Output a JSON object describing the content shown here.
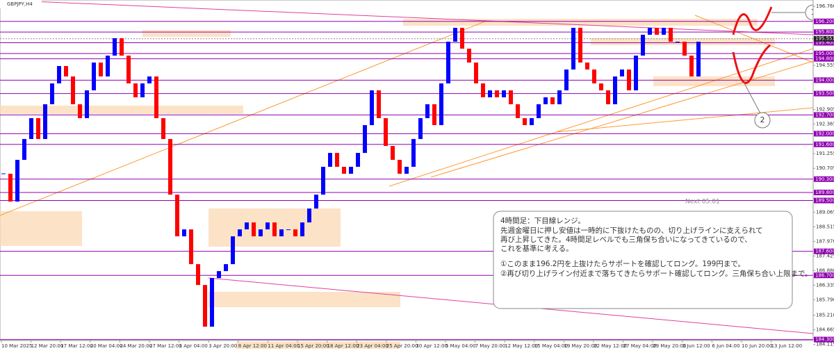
{
  "chart_data": {
    "type": "candlestick",
    "title": "GBPJPY,H4",
    "timer": "Next 05:01",
    "ylim": [
      183.9,
      197.0
    ],
    "up_color": "#0000ff",
    "down_color": "#ff0000",
    "level_color": "#9000b0",
    "current_price": {
      "value": 195.551,
      "label": "195.551"
    },
    "categories": [
      "10 Mar 2025",
      "12 Mar 20:00",
      "17 Mar 12:00",
      "20 Mar 04:00",
      "24 Mar 20:00",
      "27 Mar 12:00",
      "1 Apr 04:00",
      "3 Apr 20:00",
      "8 Apr 12:00",
      "11 Apr 04:00",
      "15 Apr 20:00",
      "18 Apr 12:00",
      "23 Apr 04:00",
      "25 Apr 20:00",
      "30 Apr 12:00",
      "5 May 04:00",
      "7 May 20:00",
      "12 May 12:00",
      "15 May 04:00",
      "19 May 20:00",
      "22 May 12:00",
      "27 May 04:00",
      "29 May 20:00",
      "3 Jun 12:00",
      "6 Jun 04:00",
      "10 Jun 20:00",
      "13 Jun 12:00"
    ],
    "closes": [
      190.5,
      189.46,
      191.02,
      191.8,
      192.58,
      191.8,
      193.1,
      193.88,
      194.53,
      194.14,
      193.1,
      192.58,
      193.62,
      194.66,
      194.14,
      194.92,
      195.57,
      194.92,
      193.88,
      193.36,
      193.88,
      194.14,
      192.58,
      191.8,
      189.72,
      188.16,
      188.42,
      187.12,
      186.34,
      184.78,
      186.6,
      186.86,
      187.12,
      188.16,
      188.42,
      188.68,
      188.16,
      188.42,
      188.68,
      188.16,
      188.42,
      188.42,
      188.16,
      188.68,
      189.2,
      189.72,
      190.76,
      191.28,
      190.76,
      190.5,
      190.76,
      191.28,
      192.32,
      193.62,
      192.58,
      191.54,
      191.02,
      190.5,
      190.76,
      191.8,
      192.58,
      193.1,
      192.32,
      193.88,
      195.44,
      195.96,
      195.18,
      194.66,
      193.88,
      193.36,
      193.62,
      193.36,
      193.62,
      193.1,
      192.58,
      192.32,
      192.58,
      193.1,
      193.36,
      193.1,
      193.62,
      194.4,
      195.96,
      194.66,
      194.4,
      193.88,
      193.62,
      193.1,
      194.14,
      194.4,
      193.62,
      194.92,
      195.7,
      195.96,
      195.7,
      195.96,
      195.44,
      195.44,
      194.92,
      194.14,
      195.44
    ],
    "yticks": [
      {
        "value": 196.76,
        "label": "196.760"
      },
      {
        "value": 195.551,
        "label": "195.551"
      },
      {
        "value": 194.555,
        "label": "194.555"
      },
      {
        "value": 192.905,
        "label": "192.905"
      },
      {
        "value": 192.365,
        "label": "192.365"
      },
      {
        "value": 191.255,
        "label": "191.255"
      },
      {
        "value": 190.705,
        "label": "190.705"
      },
      {
        "value": 189.065,
        "label": "189.065"
      },
      {
        "value": 188.515,
        "label": "188.515"
      },
      {
        "value": 187.97,
        "label": "187.970"
      },
      {
        "value": 187.425,
        "label": "187.425"
      },
      {
        "value": 186.88,
        "label": "186.880"
      },
      {
        "value": 186.335,
        "label": "186.335"
      },
      {
        "value": 185.79,
        "label": "185.790"
      },
      {
        "value": 185.21,
        "label": "185.210"
      },
      {
        "value": 184.665,
        "label": "184.665"
      },
      {
        "value": 184.115,
        "label": "184.115"
      }
    ],
    "levels": [
      {
        "value": 196.2,
        "label": "196.200"
      },
      {
        "value": 195.8,
        "label": "195.800"
      },
      {
        "value": 195.4,
        "label": "195.400"
      },
      {
        "value": 195.0,
        "label": "195.000"
      },
      {
        "value": 194.8,
        "label": "194.800"
      },
      {
        "value": 194.0,
        "label": "194.000"
      },
      {
        "value": 193.5,
        "label": "193.500"
      },
      {
        "value": 192.7,
        "label": "192.700"
      },
      {
        "value": 192.0,
        "label": "192.000"
      },
      {
        "value": 191.6,
        "label": "191.600"
      },
      {
        "value": 190.3,
        "label": "190.300"
      },
      {
        "value": 189.8,
        "label": "189.800"
      },
      {
        "value": 189.5,
        "label": "189.500"
      },
      {
        "value": 187.6,
        "label": "187.600"
      },
      {
        "value": 186.7,
        "label": "186.700"
      },
      {
        "value": 184.3,
        "label": "184.300"
      }
    ],
    "annotation": [
      "4時間足：下目線レンジ。",
      "先週金曜日に押し安値は一時的に下抜けたものの、切り上げラインに支えられて",
      "再び上昇してきた。4時間足レベルでも三角保ち合いになってきているので、",
      "これを基準に考える。",
      "①このまま196.2円を上抜けたらサポートを確認してロング。199円まで。",
      "②再び切り上げライン付近まで落ちてきたらサポート確認してロング。三角保ち合い上限まで。"
    ],
    "scenario_labels": [
      "1",
      "2"
    ]
  }
}
